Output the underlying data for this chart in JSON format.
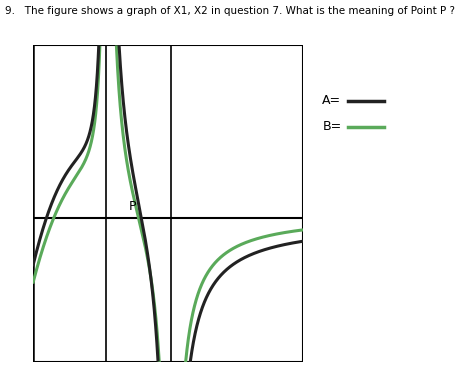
{
  "title": "9.   The figure shows a graph of X1, X2 in question 7. What is the meaning of Point P ?",
  "color_A": "#222222",
  "color_B": "#5aaa5a",
  "point_P_label": "P",
  "background_color": "#ffffff",
  "grid_color": "#cccccc",
  "x_asym1": -1.8,
  "x_asym2": 0.6,
  "xlim": [
    -4.5,
    5.5
  ],
  "ylim": [
    -5.0,
    6.0
  ],
  "lw": 2.2
}
